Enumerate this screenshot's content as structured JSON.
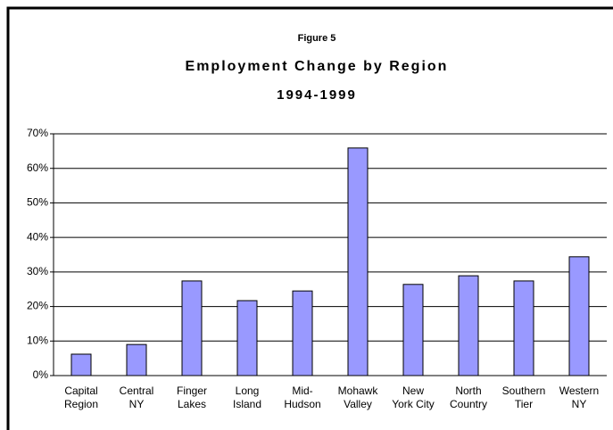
{
  "chart_data": {
    "type": "bar",
    "figure_label": "Figure 5",
    "title": "Employment Change by Region",
    "subtitle": "1994-1999",
    "categories": [
      "Capital\nRegion",
      "Central\nNY",
      "Finger\nLakes",
      "Long\nIsland",
      "Mid-\nHudson",
      "Mohawk\nValley",
      "New\nYork City",
      "North\nCountry",
      "Southern\nTier",
      "Western\nNY"
    ],
    "values": [
      6.2,
      9.0,
      27.4,
      21.7,
      24.5,
      65.9,
      26.4,
      28.9,
      27.4,
      34.4
    ],
    "color": "#9999ff",
    "ylim": [
      0,
      70
    ],
    "yticks": [
      {
        "value": 0,
        "label": "0%"
      },
      {
        "value": 10,
        "label": "10%"
      },
      {
        "value": 20,
        "label": "20%"
      },
      {
        "value": 30,
        "label": "30%"
      },
      {
        "value": 40,
        "label": "40%"
      },
      {
        "value": 50,
        "label": "50%"
      },
      {
        "value": 60,
        "label": "60%"
      },
      {
        "value": 70,
        "label": "70%"
      }
    ],
    "grid": true
  }
}
